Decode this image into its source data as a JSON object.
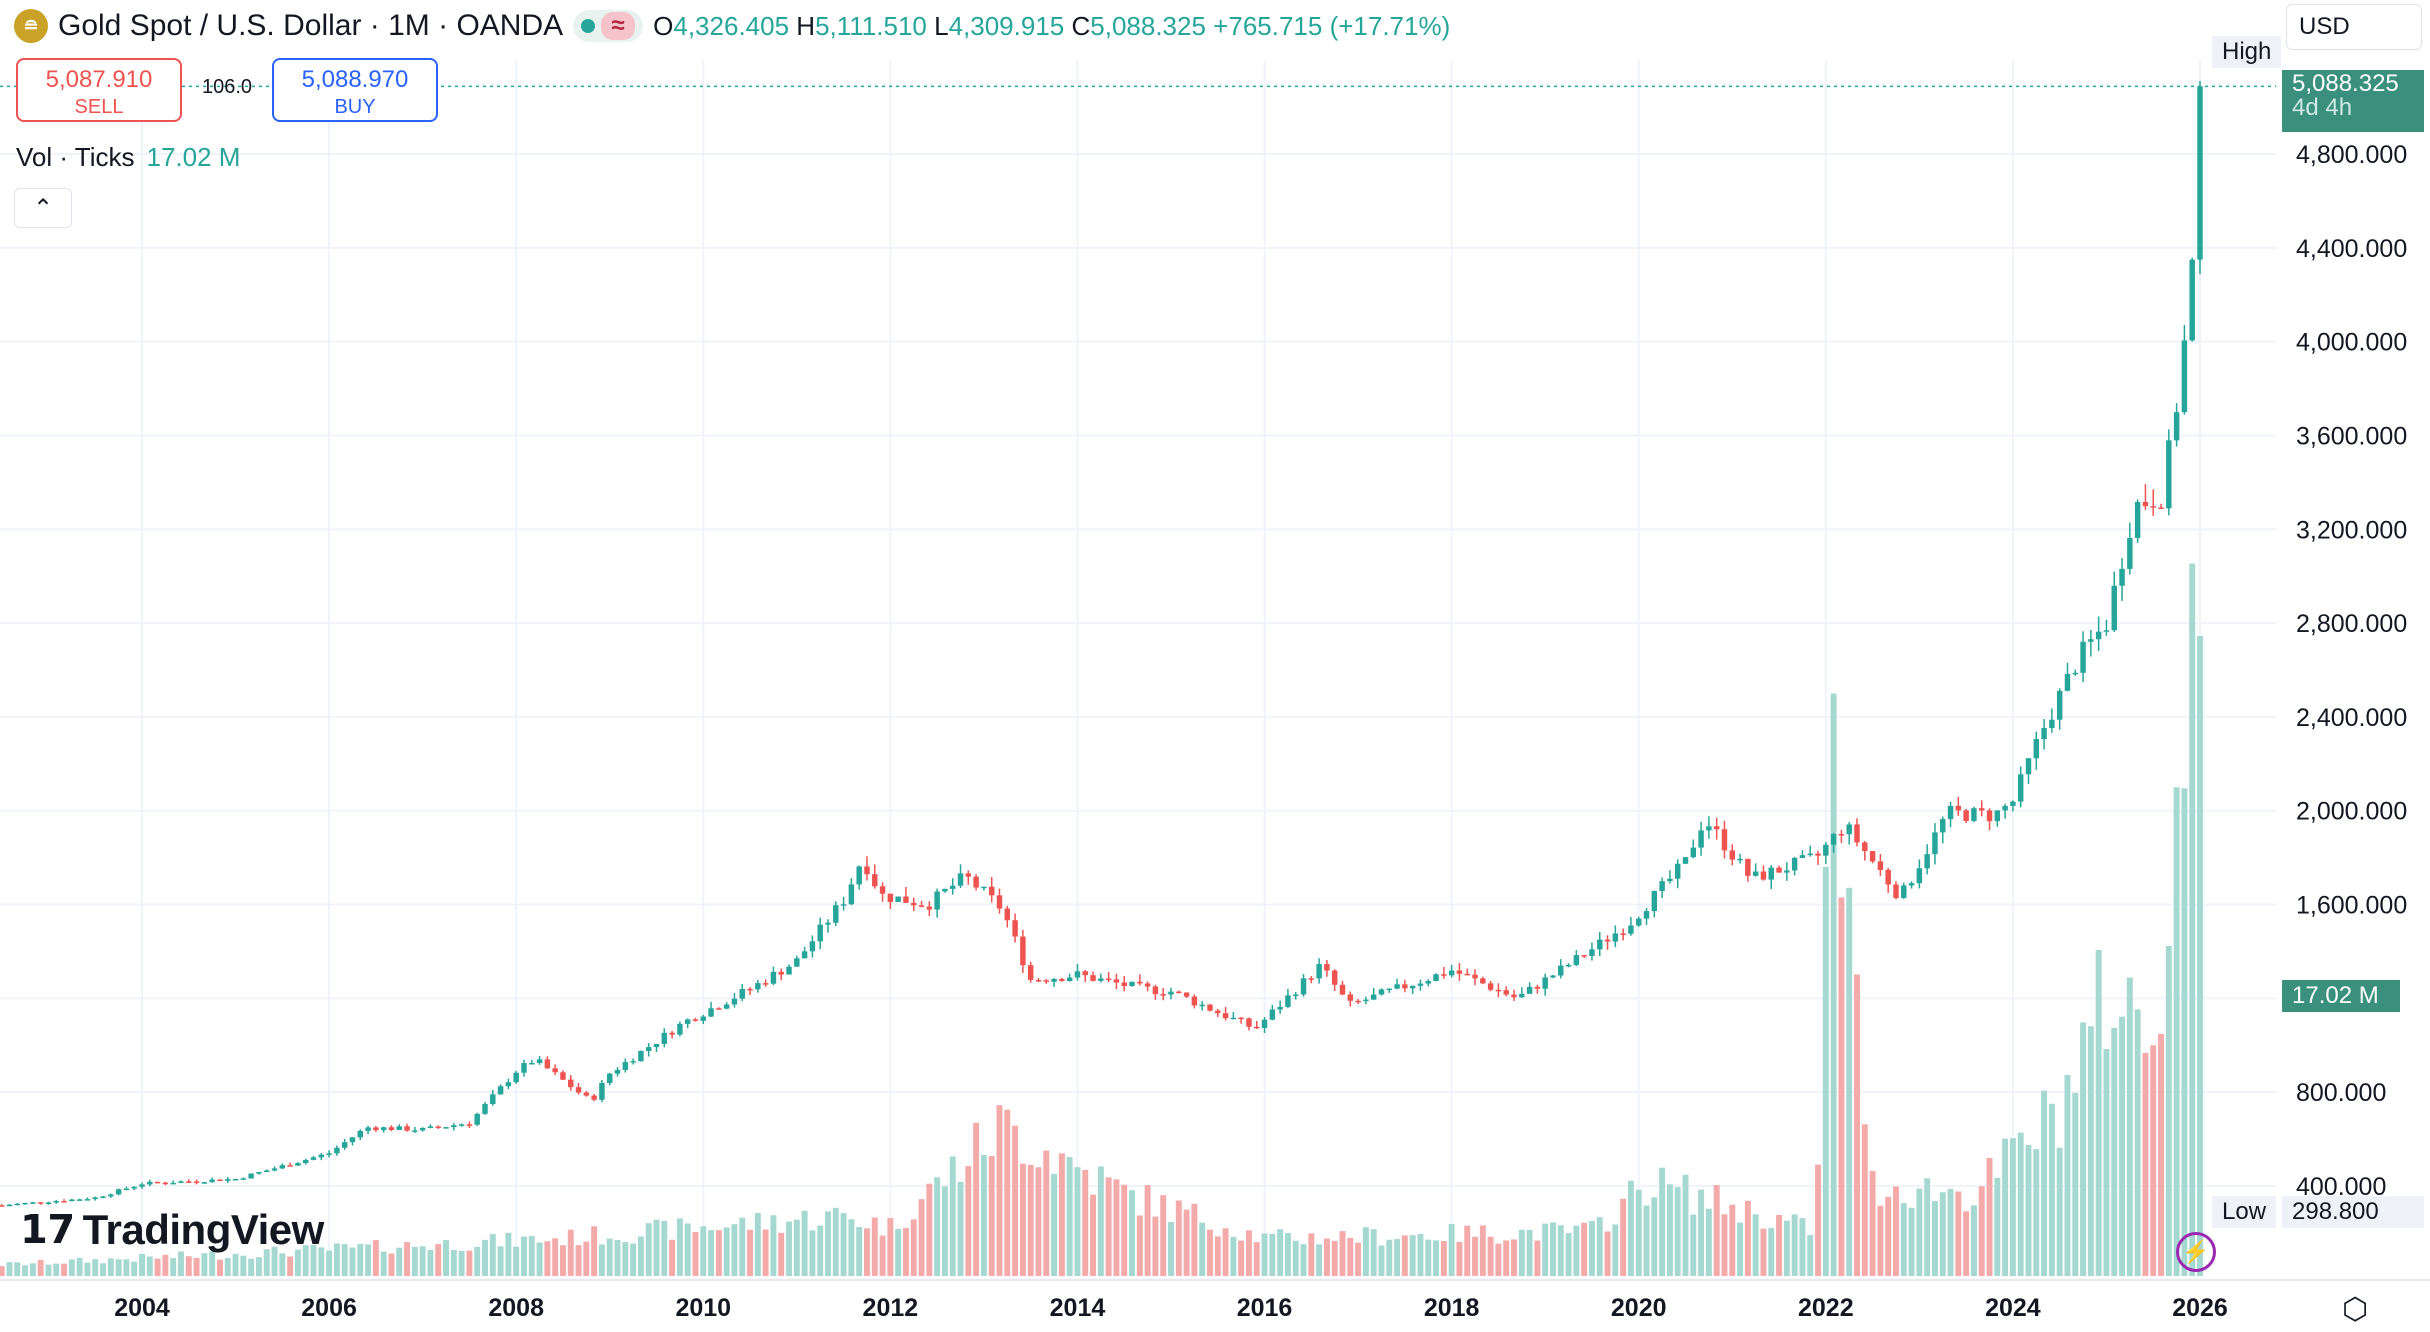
{
  "header": {
    "symbol_title": "Gold Spot / U.S. Dollar · 1M · OANDA",
    "open_label": "O",
    "open": "4,326.405",
    "high_label": "H",
    "high": "5,111.510",
    "low_label": "L",
    "low": "4,309.915",
    "close_label": "C",
    "close": "5,088.325",
    "change": "+765.715 (+17.71%)"
  },
  "currency": "USD",
  "trade": {
    "sell_price": "5,087.910",
    "sell_label": "SELL",
    "spread": "106.0",
    "buy_price": "5,088.970",
    "buy_label": "BUY"
  },
  "volume_legend": {
    "label": "Vol · Ticks",
    "value": "17.02 M"
  },
  "branding": "TradingView",
  "markers": {
    "high_label": "High",
    "price_tag": "5,088.325",
    "countdown": "4d 4h",
    "volume_tag": "17.02 M",
    "low_label": "Low",
    "low_value": "298.800"
  },
  "colors": {
    "up": "#26a69a",
    "down": "#ef5350",
    "vol_up": "#a6d8d2",
    "vol_down": "#f3aaa9",
    "grid": "#f0f3fa"
  },
  "chart_data": {
    "type": "candlestick",
    "interval": "1M",
    "price_ticks": [
      400,
      800,
      1600,
      2000,
      2400,
      2800,
      3200,
      3600,
      4000,
      4400,
      4800
    ],
    "price_tick_labels": [
      "400.000",
      "800.000",
      "1,600.000",
      "2,000.000",
      "2,400.000",
      "2,800.000",
      "3,200.000",
      "3,600.000",
      "4,000.000",
      "4,400.000",
      "4,800.000"
    ],
    "year_ticks": [
      2004,
      2006,
      2008,
      2010,
      2012,
      2014,
      2016,
      2018,
      2020,
      2022,
      2024,
      2026
    ],
    "ylim": [
      100,
      5200
    ],
    "xlim_year": [
      2002.5,
      2027.3
    ],
    "start_year": 2002.5,
    "anchors": [
      {
        "t": 2002.5,
        "p": 318
      },
      {
        "t": 2003.5,
        "p": 350
      },
      {
        "t": 2004.0,
        "p": 410
      },
      {
        "t": 2005.0,
        "p": 430
      },
      {
        "t": 2006.0,
        "p": 540
      },
      {
        "t": 2006.4,
        "p": 650
      },
      {
        "t": 2007.0,
        "p": 640
      },
      {
        "t": 2007.5,
        "p": 670
      },
      {
        "t": 2008.0,
        "p": 890
      },
      {
        "t": 2008.2,
        "p": 940
      },
      {
        "t": 2008.8,
        "p": 760
      },
      {
        "t": 2009.0,
        "p": 880
      },
      {
        "t": 2009.8,
        "p": 1100
      },
      {
        "t": 2010.5,
        "p": 1240
      },
      {
        "t": 2011.0,
        "p": 1360
      },
      {
        "t": 2011.5,
        "p": 1620
      },
      {
        "t": 2011.7,
        "p": 1800
      },
      {
        "t": 2011.9,
        "p": 1640
      },
      {
        "t": 2012.4,
        "p": 1600
      },
      {
        "t": 2012.8,
        "p": 1720
      },
      {
        "t": 2013.2,
        "p": 1580
      },
      {
        "t": 2013.5,
        "p": 1280
      },
      {
        "t": 2014.0,
        "p": 1300
      },
      {
        "t": 2014.7,
        "p": 1240
      },
      {
        "t": 2015.0,
        "p": 1230
      },
      {
        "t": 2015.9,
        "p": 1070
      },
      {
        "t": 2016.6,
        "p": 1340
      },
      {
        "t": 2016.9,
        "p": 1170
      },
      {
        "t": 2018.0,
        "p": 1320
      },
      {
        "t": 2018.7,
        "p": 1200
      },
      {
        "t": 2019.5,
        "p": 1410
      },
      {
        "t": 2019.9,
        "p": 1520
      },
      {
        "t": 2020.5,
        "p": 1780
      },
      {
        "t": 2020.7,
        "p": 1970
      },
      {
        "t": 2021.2,
        "p": 1710
      },
      {
        "t": 2021.9,
        "p": 1800
      },
      {
        "t": 2022.2,
        "p": 1940
      },
      {
        "t": 2022.8,
        "p": 1630
      },
      {
        "t": 2023.3,
        "p": 1990
      },
      {
        "t": 2023.8,
        "p": 1980
      },
      {
        "t": 2024.0,
        "p": 2040
      },
      {
        "t": 2024.3,
        "p": 2330
      },
      {
        "t": 2024.7,
        "p": 2650
      },
      {
        "t": 2025.0,
        "p": 2800
      },
      {
        "t": 2025.3,
        "p": 3300
      },
      {
        "t": 2025.6,
        "p": 3350
      },
      {
        "t": 2025.8,
        "p": 3860
      },
      {
        "t": 2025.92,
        "p": 4330
      },
      {
        "t": 2026.0,
        "p": 5088
      }
    ],
    "volume_regimes": [
      {
        "t": 2002.5,
        "v": 0.3
      },
      {
        "t": 2008.5,
        "v": 1.0
      },
      {
        "t": 2011.5,
        "v": 1.6
      },
      {
        "t": 2012.0,
        "v": 1.3
      },
      {
        "t": 2013.2,
        "v": 4.0
      },
      {
        "t": 2014.5,
        "v": 2.2
      },
      {
        "t": 2016.0,
        "v": 1.0
      },
      {
        "t": 2019.5,
        "v": 1.2
      },
      {
        "t": 2020.1,
        "v": 2.5
      },
      {
        "t": 2021.9,
        "v": 1.2
      },
      {
        "t": 2022.05,
        "v": 14.5
      },
      {
        "t": 2022.5,
        "v": 2.4
      },
      {
        "t": 2023.6,
        "v": 2.2
      },
      {
        "t": 2024.5,
        "v": 4.5
      },
      {
        "t": 2025.0,
        "v": 7.5
      },
      {
        "t": 2025.5,
        "v": 6.5
      },
      {
        "t": 2025.92,
        "v": 16.0
      },
      {
        "t": 2026.0,
        "v": 17.02
      }
    ]
  }
}
